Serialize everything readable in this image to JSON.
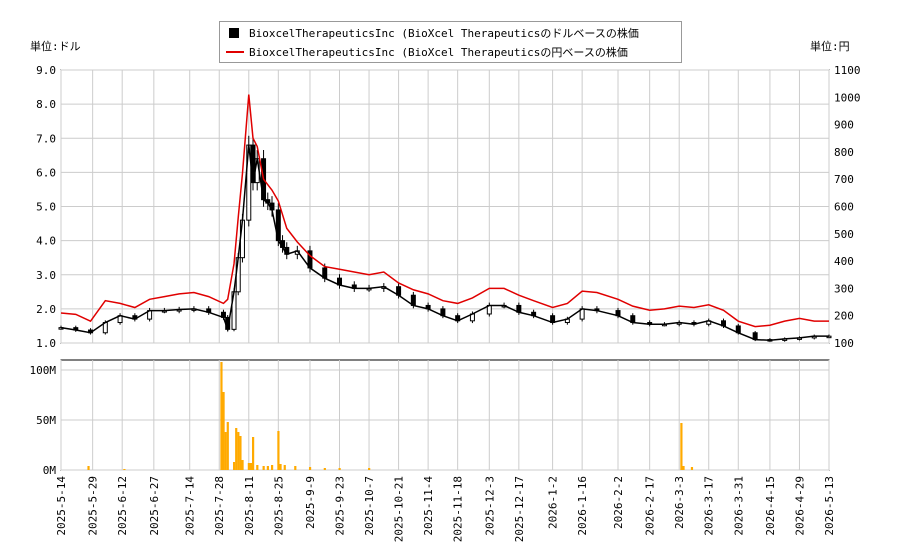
{
  "legend": {
    "usd_label": "BioxcelTherapeuticsInc (BioXcel Therapeuticsのドルベースの株価",
    "jpy_label": "BioxcelTherapeuticsInc (BioXcel Therapeuticsの円ベースの株価"
  },
  "units": {
    "left": "単位:ドル",
    "right": "単位:円"
  },
  "colors": {
    "jpy_line": "#e00000",
    "candle": "#000000",
    "volume": "#ffaa00",
    "grid": "#cccccc"
  },
  "chart_data": [
    {
      "type": "line",
      "subtype": "candlestick-with-line",
      "x_ticks": [
        "2025-5-14",
        "2025-5-29",
        "2025-6-12",
        "2025-6-27",
        "2025-7-14",
        "2025-7-28",
        "2025-8-11",
        "2025-8-25",
        "2025-9-9",
        "2025-9-23",
        "2025-10-7",
        "2025-10-21",
        "2025-11-4",
        "2025-11-18",
        "2025-12-3",
        "2025-12-17",
        "2026-1-2",
        "2026-1-16",
        "2026-2-2",
        "2026-2-17",
        "2026-3-3",
        "2026-3-17",
        "2026-3-31",
        "2026-4-15",
        "2026-4-29",
        "2026-5-13"
      ],
      "y_left_ticks": [
        "1.0",
        "2.0",
        "3.0",
        "4.0",
        "5.0",
        "6.0",
        "7.0",
        "8.0",
        "9.0"
      ],
      "y_right_ticks": [
        "100",
        "200",
        "300",
        "400",
        "500",
        "600",
        "700",
        "800",
        "900",
        "1000",
        "1100"
      ],
      "ylim_left": [
        1.0,
        9.0
      ],
      "ylim_right": [
        100,
        1100
      ],
      "grid": true,
      "legend_position": "top-center",
      "series": [
        {
          "name": "BioxcelTherapeuticsInc (BioXcel Therapeuticsのドルベースの株価",
          "axis": "left",
          "x": [
            "2025-5-14",
            "2025-5-21",
            "2025-5-28",
            "2025-6-4",
            "2025-6-11",
            "2025-6-18",
            "2025-6-25",
            "2025-7-2",
            "2025-7-9",
            "2025-7-16",
            "2025-7-23",
            "2025-7-30",
            "2025-8-1",
            "2025-8-4",
            "2025-8-6",
            "2025-8-8",
            "2025-8-11",
            "2025-8-13",
            "2025-8-15",
            "2025-8-18",
            "2025-8-20",
            "2025-8-22",
            "2025-8-25",
            "2025-8-27",
            "2025-8-29",
            "2025-9-3",
            "2025-9-9",
            "2025-9-16",
            "2025-9-23",
            "2025-9-30",
            "2025-10-7",
            "2025-10-14",
            "2025-10-21",
            "2025-10-28",
            "2025-11-4",
            "2025-11-11",
            "2025-11-18",
            "2025-11-25",
            "2025-12-3",
            "2025-12-10",
            "2025-12-17",
            "2025-12-24",
            "2026-1-2",
            "2026-1-9",
            "2026-1-16",
            "2026-1-23",
            "2026-2-2",
            "2026-2-9",
            "2026-2-17",
            "2026-2-24",
            "2026-3-3",
            "2026-3-10",
            "2026-3-17",
            "2026-3-24",
            "2026-3-31",
            "2026-4-8",
            "2026-4-15",
            "2026-4-22",
            "2026-4-29",
            "2026-5-6",
            "2026-5-13"
          ],
          "values": [
            1.45,
            1.38,
            1.3,
            1.6,
            1.8,
            1.7,
            1.95,
            1.95,
            1.98,
            2.0,
            1.9,
            1.75,
            1.4,
            2.5,
            3.5,
            4.6,
            6.8,
            5.7,
            6.4,
            5.2,
            5.1,
            4.9,
            4.0,
            3.8,
            3.6,
            3.7,
            3.2,
            2.9,
            2.7,
            2.6,
            2.6,
            2.65,
            2.4,
            2.1,
            2.0,
            1.8,
            1.65,
            1.85,
            2.1,
            2.1,
            1.9,
            1.8,
            1.6,
            1.7,
            2.0,
            1.95,
            1.8,
            1.6,
            1.55,
            1.55,
            1.6,
            1.55,
            1.65,
            1.5,
            1.3,
            1.1,
            1.08,
            1.12,
            1.15,
            1.2,
            1.2
          ]
        },
        {
          "name": "BioxcelTherapeuticsInc (BioXcel Therapeuticsの円ベースの株価",
          "axis": "right",
          "x": [
            "2025-5-14",
            "2025-5-21",
            "2025-5-28",
            "2025-6-4",
            "2025-6-11",
            "2025-6-18",
            "2025-6-25",
            "2025-7-2",
            "2025-7-9",
            "2025-7-16",
            "2025-7-23",
            "2025-7-30",
            "2025-8-1",
            "2025-8-4",
            "2025-8-6",
            "2025-8-8",
            "2025-8-11",
            "2025-8-13",
            "2025-8-15",
            "2025-8-18",
            "2025-8-20",
            "2025-8-22",
            "2025-8-25",
            "2025-8-27",
            "2025-8-29",
            "2025-9-3",
            "2025-9-9",
            "2025-9-16",
            "2025-9-23",
            "2025-9-30",
            "2025-10-7",
            "2025-10-14",
            "2025-10-21",
            "2025-10-28",
            "2025-11-4",
            "2025-11-11",
            "2025-11-18",
            "2025-11-25",
            "2025-12-3",
            "2025-12-10",
            "2025-12-17",
            "2025-12-24",
            "2026-1-2",
            "2026-1-9",
            "2026-1-16",
            "2026-1-23",
            "2026-2-2",
            "2026-2-9",
            "2026-2-17",
            "2026-2-24",
            "2026-3-3",
            "2026-3-10",
            "2026-3-17",
            "2026-3-24",
            "2026-3-31",
            "2026-4-8",
            "2026-4-15",
            "2026-4-22",
            "2026-4-29",
            "2026-5-6",
            "2026-5-13"
          ],
          "values": [
            210,
            205,
            180,
            255,
            245,
            230,
            260,
            270,
            280,
            285,
            270,
            245,
            260,
            390,
            560,
            720,
            1010,
            850,
            820,
            700,
            680,
            660,
            620,
            570,
            520,
            470,
            420,
            380,
            370,
            360,
            350,
            360,
            320,
            295,
            280,
            255,
            245,
            265,
            300,
            300,
            275,
            255,
            230,
            245,
            290,
            285,
            260,
            235,
            220,
            225,
            235,
            230,
            240,
            220,
            180,
            160,
            165,
            180,
            190,
            180,
            180
          ]
        }
      ]
    },
    {
      "type": "bar",
      "subtype": "volume",
      "y_ticks": [
        "0M",
        "50M",
        "100M"
      ],
      "ylim": [
        0,
        110
      ],
      "x": [
        "2025-5-27",
        "2025-6-13",
        "2025-7-29",
        "2025-7-30",
        "2025-7-31",
        "2025-8-1",
        "2025-8-4",
        "2025-8-5",
        "2025-8-6",
        "2025-8-7",
        "2025-8-8",
        "2025-8-11",
        "2025-8-12",
        "2025-8-13",
        "2025-8-15",
        "2025-8-18",
        "2025-8-20",
        "2025-8-22",
        "2025-8-25",
        "2025-8-26",
        "2025-8-28",
        "2025-9-2",
        "2025-9-9",
        "2025-9-16",
        "2025-9-23",
        "2025-10-7",
        "2026-3-4",
        "2026-3-5",
        "2026-3-9"
      ],
      "values": [
        4,
        1,
        108,
        78,
        38,
        48,
        8,
        42,
        38,
        34,
        10,
        7,
        7,
        33,
        5,
        4,
        4,
        5,
        39,
        6,
        5,
        4,
        3,
        2,
        2,
        2,
        47,
        4,
        3
      ]
    }
  ]
}
